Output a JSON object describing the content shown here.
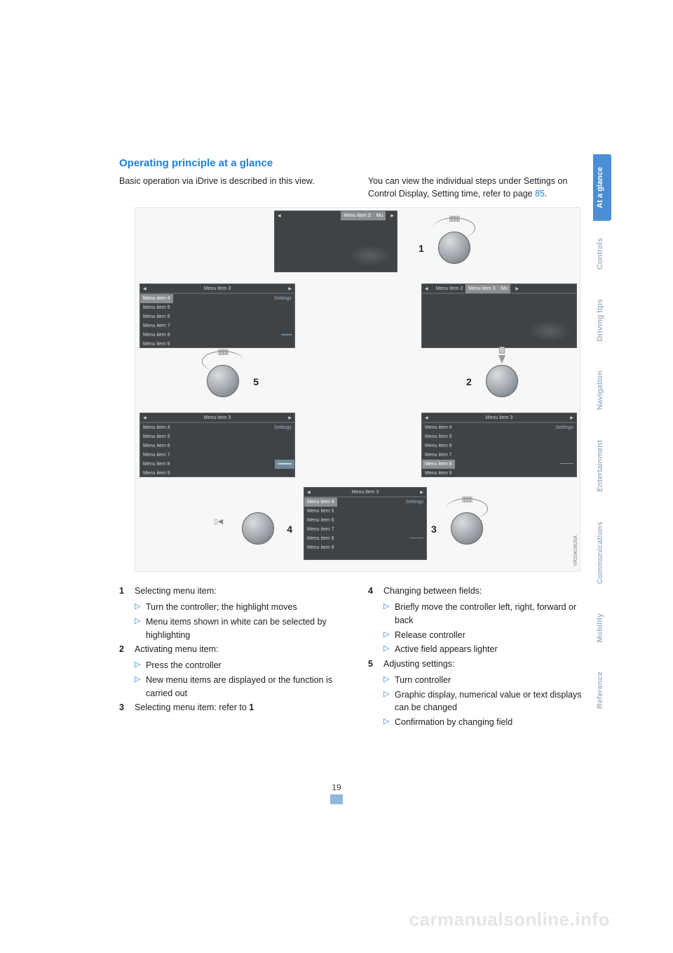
{
  "section_title": "Operating principle at a glance",
  "intro_left": "Basic operation via iDrive is described in this view.",
  "intro_right_a": "You can view the individual steps under Settings on Control Display, Setting time, refer to page ",
  "intro_right_link": "85",
  "intro_right_b": ".",
  "page_number": "19",
  "watermark": "carmanualsonline.info",
  "side_tabs": [
    {
      "label": "At a glance",
      "active": true
    },
    {
      "label": "Controls",
      "active": false
    },
    {
      "label": "Driving tips",
      "active": false
    },
    {
      "label": "Navigation",
      "active": false
    },
    {
      "label": "Entertainment",
      "active": false
    },
    {
      "label": "Communications",
      "active": false
    },
    {
      "label": "Mobility",
      "active": false
    },
    {
      "label": "Reference",
      "active": false
    }
  ],
  "knobs": {
    "k1": "1",
    "k2": "2",
    "k3": "3",
    "k4": "4",
    "k5": "5"
  },
  "menu_text": {
    "m3": "Menu item 3",
    "m2": "Menu item 2",
    "m4": "Menu item 4",
    "m5": "Menu item 5",
    "m6": "Menu item 6",
    "m7": "Menu item 7",
    "m8": "Menu item 8",
    "m9": "Menu item 9",
    "settings": "Settings",
    "mu": "Mu"
  },
  "steps_left": [
    {
      "num": "1",
      "text": "Selecting menu item:",
      "subs": [
        "Turn the controller; the highlight moves",
        "Menu items shown in white can be selected by highlighting"
      ]
    },
    {
      "num": "2",
      "text": "Activating menu item:",
      "subs": [
        "Press the controller",
        "New menu items are displayed or the function is carried out"
      ]
    },
    {
      "num": "3",
      "text": "Selecting menu item: refer to 1",
      "bold_tail": "1",
      "subs": []
    }
  ],
  "steps_right": [
    {
      "num": "4",
      "text": "Changing between fields:",
      "subs": [
        "Briefly move the controller left, right, forward or back",
        "Release controller",
        "Active field appears lighter"
      ]
    },
    {
      "num": "5",
      "text": "Adjusting settings:",
      "subs": [
        "Turn controller",
        "Graphic display, numerical value or text displays can be changed",
        "Confirmation by changing field"
      ]
    }
  ],
  "colors": {
    "accent": "#1f7fd6",
    "tab_active_bg": "#4a8fd6",
    "tab_inactive_fg": "#a8b6c5",
    "page_bar": "#8fb8dd",
    "watermark": "#e5e5e5"
  }
}
